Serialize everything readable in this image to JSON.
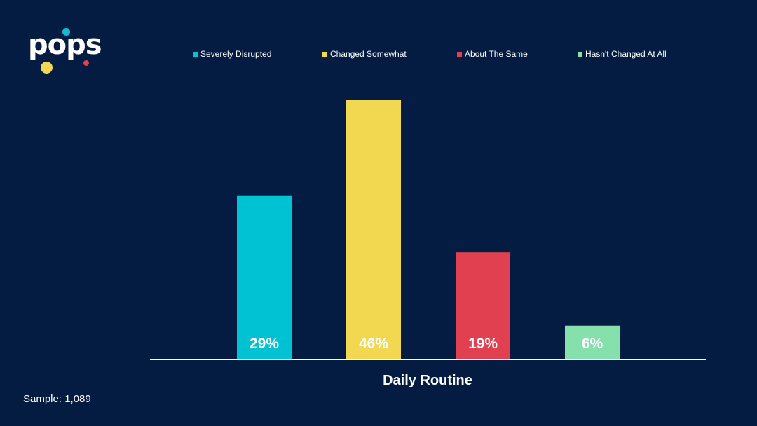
{
  "logo": {
    "text": "pops",
    "dots": [
      "#17b8d4",
      "#f2d750",
      "#e0404f"
    ]
  },
  "sample_label": "Sample: 1,089",
  "chart_data": {
    "type": "bar",
    "title": "",
    "xlabel": "Daily Routine",
    "ylabel": "",
    "ylim": [
      0,
      50
    ],
    "grid": false,
    "legend_position": "top",
    "series": [
      {
        "name": "Severely Disrupted",
        "values": [
          29
        ],
        "label": "29%",
        "color": "#00c2d3"
      },
      {
        "name": "Changed Somewhat",
        "values": [
          46
        ],
        "label": "46%",
        "color": "#f2d750"
      },
      {
        "name": "About The Same",
        "values": [
          19
        ],
        "label": "19%",
        "color": "#e0404f"
      },
      {
        "name": "Hasn't Changed At All",
        "values": [
          6
        ],
        "label": "6%",
        "color": "#86e0ac"
      }
    ]
  }
}
